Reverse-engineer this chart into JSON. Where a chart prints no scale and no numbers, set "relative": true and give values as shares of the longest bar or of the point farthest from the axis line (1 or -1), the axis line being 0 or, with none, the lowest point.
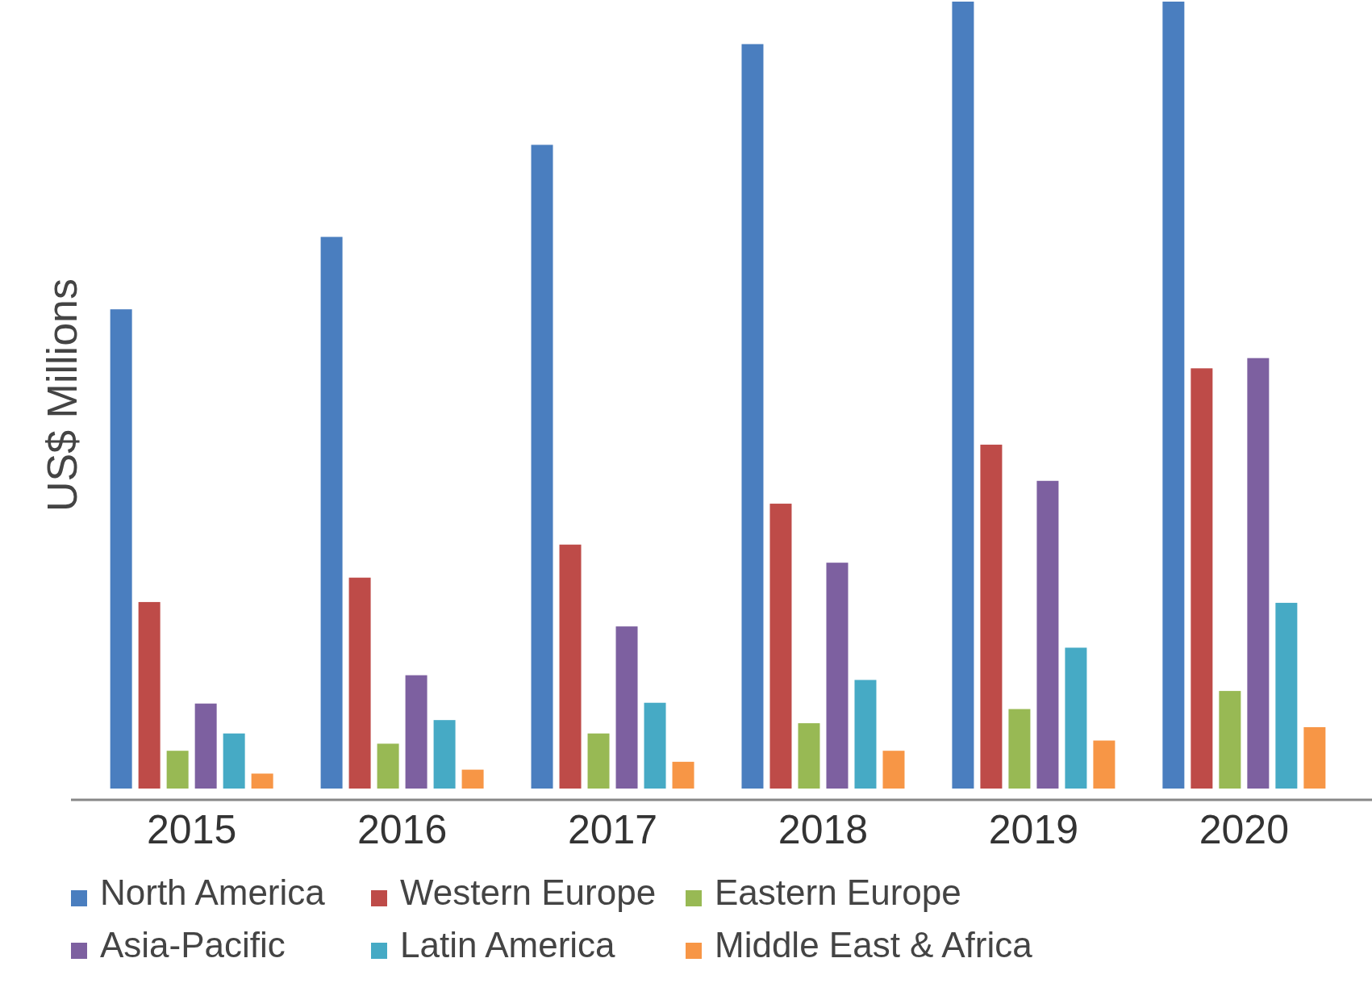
{
  "chart_data": {
    "type": "bar",
    "relative": true,
    "ylabel": "US$ Millions",
    "categories": [
      "2015",
      "2016",
      "2017",
      "2018",
      "2019",
      "2020"
    ],
    "legend": "bottom",
    "series": [
      {
        "name": "North America",
        "color": "#4a7ebf",
        "values": [
          0.609,
          0.701,
          0.818,
          0.946,
          1,
          1
        ]
      },
      {
        "name": "Western Europe",
        "color": "#be4b48",
        "values": [
          0.237,
          0.268,
          0.31,
          0.362,
          0.437,
          0.534
        ]
      },
      {
        "name": "Eastern Europe",
        "color": "#98b954",
        "values": [
          0.048,
          0.057,
          0.07,
          0.083,
          0.101,
          0.124
        ]
      },
      {
        "name": "Asia-Pacific",
        "color": "#7d60a0",
        "values": [
          0.108,
          0.144,
          0.206,
          0.287,
          0.391,
          0.547
        ]
      },
      {
        "name": "Latin America",
        "color": "#46aac5",
        "values": [
          0.07,
          0.087,
          0.109,
          0.138,
          0.179,
          0.236
        ]
      },
      {
        "name": "Middle East & Africa",
        "color": "#f79646",
        "values": [
          0.019,
          0.024,
          0.034,
          0.048,
          0.061,
          0.078
        ]
      }
    ]
  }
}
